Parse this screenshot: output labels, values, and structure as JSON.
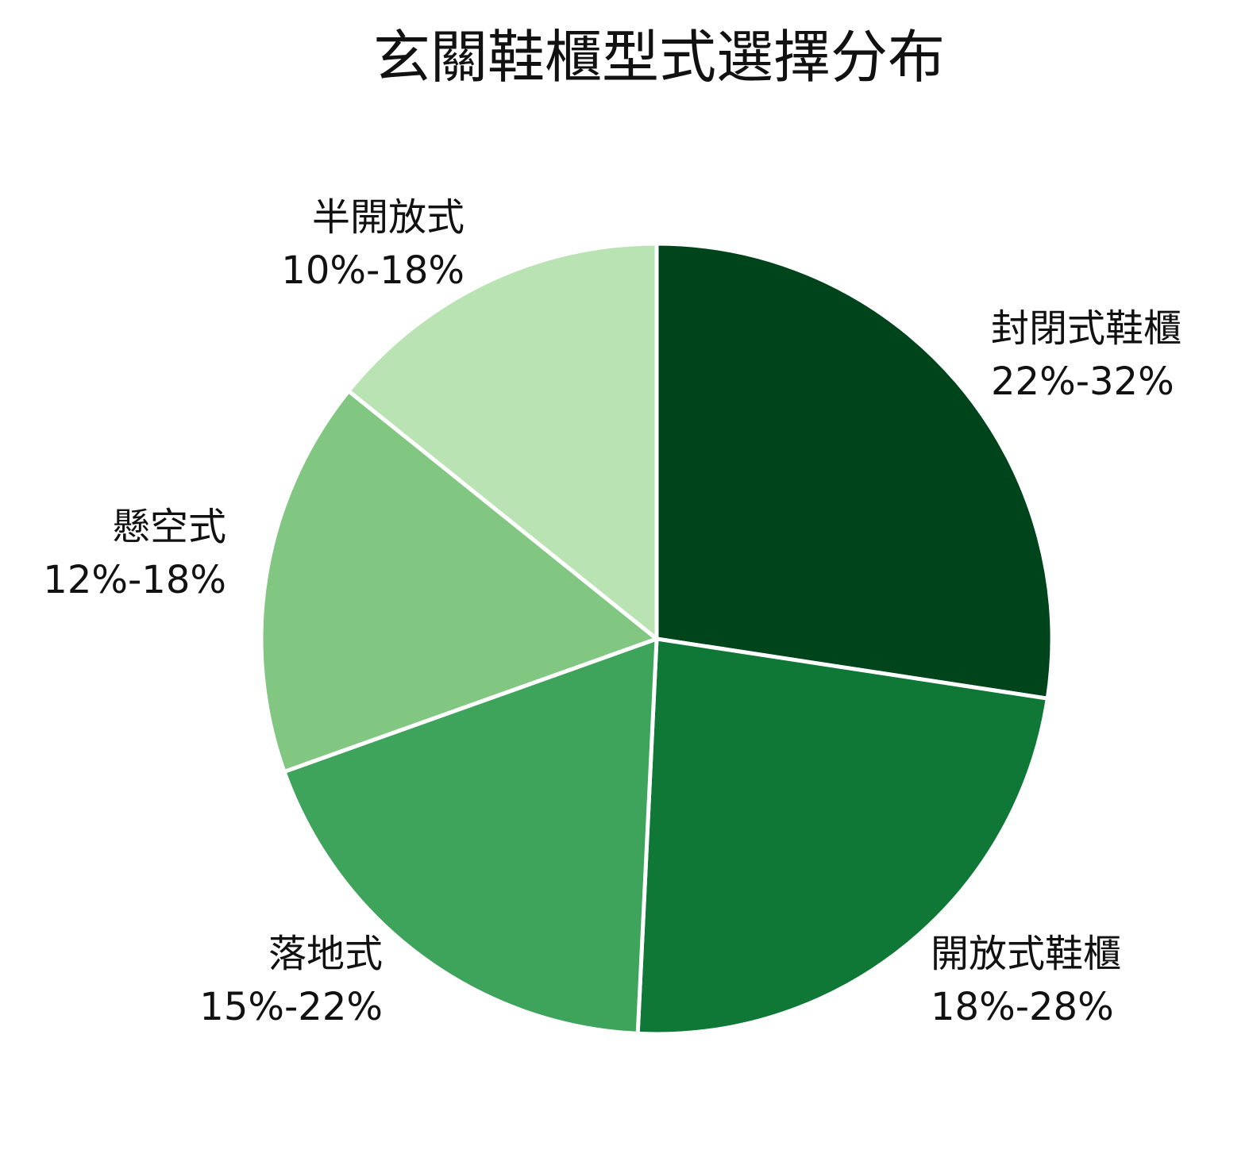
{
  "chart_data": {
    "type": "pie",
    "title": "玄關鞋櫃型式選擇分布",
    "slices": [
      {
        "label": "封閉式鞋櫃",
        "range": "22%-32%",
        "value": 27,
        "color": "#00441b"
      },
      {
        "label": "開放式鞋櫃",
        "range": "18%-28%",
        "value": 23,
        "color": "#0f7837"
      },
      {
        "label": "落地式",
        "range": "15%-22%",
        "value": 18.5,
        "color": "#3ea35b"
      },
      {
        "label": "懸空式",
        "range": "12%-18%",
        "value": 16,
        "color": "#81c782"
      },
      {
        "label": "半開放式",
        "range": "10%-18%",
        "value": 14,
        "color": "#b9e3b2"
      }
    ]
  }
}
